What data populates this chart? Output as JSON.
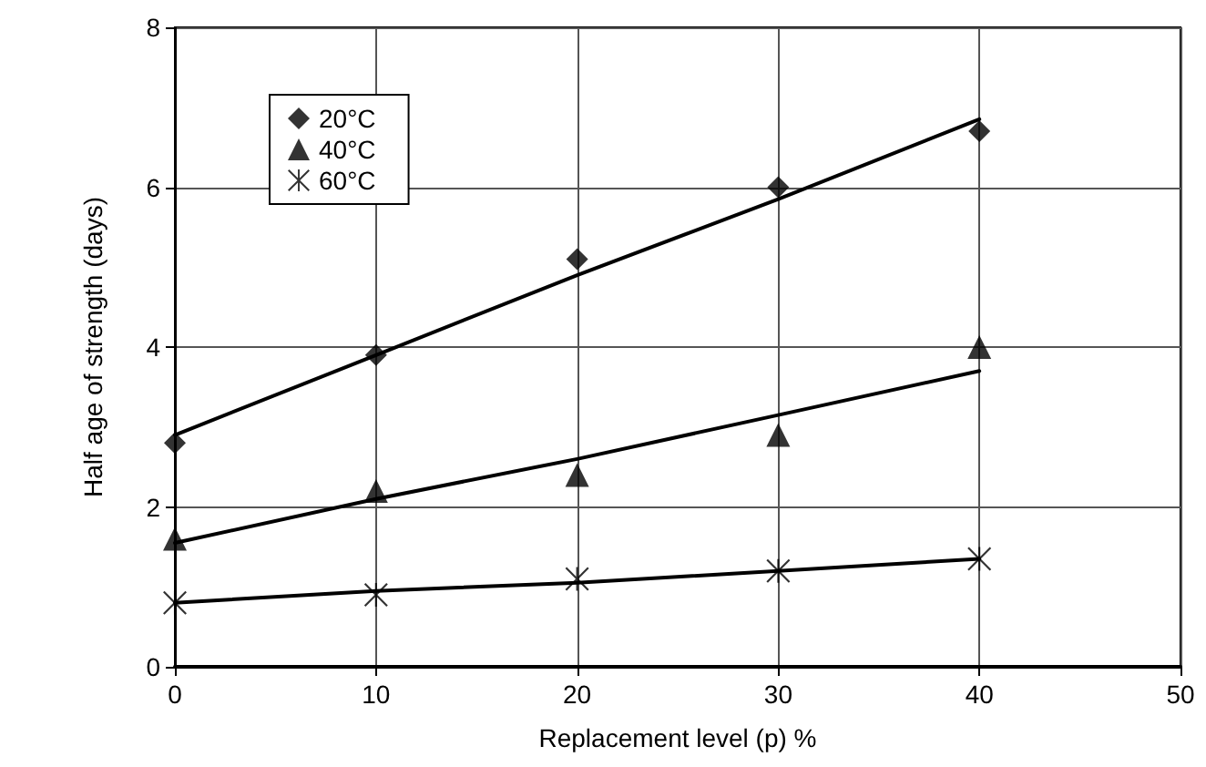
{
  "chart_data": {
    "type": "scatter",
    "xlabel": "Replacement level (p) %",
    "ylabel": "Half age of strength (days)",
    "x": [
      0,
      10,
      20,
      30,
      40
    ],
    "series": [
      {
        "name": "20°C",
        "color": "#000000",
        "marker": "diamond",
        "values": [
          2.8,
          3.9,
          5.1,
          6.0,
          6.7
        ]
      },
      {
        "name": "40°C",
        "color": "#000000",
        "marker": "triangle",
        "values": [
          1.6,
          2.2,
          2.4,
          2.9,
          4.0
        ]
      },
      {
        "name": "60°C",
        "color": "#000000",
        "marker": "star",
        "values": [
          0.8,
          0.9,
          1.1,
          1.2,
          1.35
        ]
      },
      {
        "type": "line",
        "color": "#000000",
        "marker": "none",
        "values": [
          2.9,
          3.9,
          4.9,
          5.85,
          6.85
        ]
      },
      {
        "type": "line",
        "color": "#000000",
        "marker": "none",
        "values": [
          1.55,
          2.1,
          2.6,
          3.15,
          3.7
        ]
      },
      {
        "type": "line",
        "color": "#000000",
        "marker": "none",
        "values": [
          0.8,
          0.95,
          1.05,
          1.2,
          1.35
        ]
      }
    ],
    "xlim": [
      0,
      50
    ],
    "xticks": [
      0,
      10,
      20,
      30,
      40,
      50
    ],
    "ylim": [
      0,
      8
    ],
    "yticks": [
      0,
      2,
      4,
      6,
      8
    ],
    "grid": true,
    "legend": "top left"
  }
}
